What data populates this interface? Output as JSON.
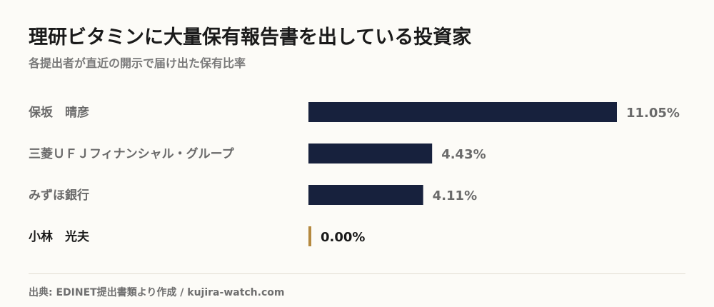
{
  "title": "理研ビタミンに大量保有報告書を出している投資家",
  "subtitle": "各提出者が直近の開示で届け出た保有比率",
  "source": "出典: EDINET提出書類より作成 / kujira-watch.com",
  "colors": {
    "bar": "#17213d",
    "highlight": "#b5893f",
    "label": "#6a6a6a",
    "highlight_label": "#1a1a1a",
    "value": "#6a6a6a",
    "highlight_value": "#1a1a1a"
  },
  "chart_data": {
    "type": "bar",
    "orientation": "horizontal",
    "categories": [
      "保坂　晴彦",
      "三菱ＵＦＪフィナンシャル・グループ",
      "みずほ銀行",
      "小林　光夫"
    ],
    "values": [
      11.05,
      4.43,
      4.11,
      0.0
    ],
    "value_labels": [
      "11.05%",
      "4.43%",
      "4.11%",
      "0.00%"
    ],
    "highlight": "小林　光夫",
    "xlim": [
      0,
      11.05
    ]
  }
}
